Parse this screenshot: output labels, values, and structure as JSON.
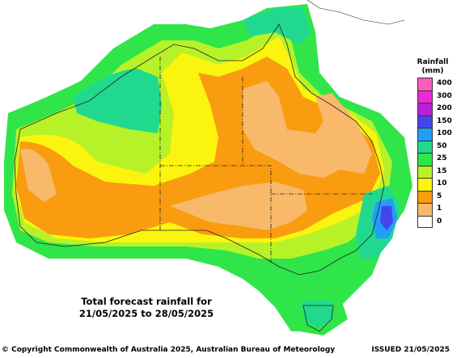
{
  "legend": {
    "title_line1": "Rainfall",
    "title_line2": "(mm)",
    "items": [
      {
        "label": "400",
        "color": "#fd5cbf"
      },
      {
        "label": "300",
        "color": "#f027d6"
      },
      {
        "label": "200",
        "color": "#b820d8"
      },
      {
        "label": "150",
        "color": "#4545f0"
      },
      {
        "label": "100",
        "color": "#1f9ff7"
      },
      {
        "label": "50",
        "color": "#21d98e"
      },
      {
        "label": "25",
        "color": "#2fe54a"
      },
      {
        "label": "15",
        "color": "#b7f229"
      },
      {
        "label": "10",
        "color": "#fbf40e"
      },
      {
        "label": "5",
        "color": "#f99c10"
      },
      {
        "label": "1",
        "color": "#f8b96a"
      },
      {
        "label": "0",
        "color": "#ffffff"
      }
    ]
  },
  "caption": {
    "line1": "Total forecast rainfall for",
    "line2": "21/05/2025 to 28/05/2025"
  },
  "footer": {
    "copyright": "© Copyright Commonwealth of Australia 2025, Australian Bureau of Meteorology",
    "issued": "ISSUED 21/05/2025"
  }
}
